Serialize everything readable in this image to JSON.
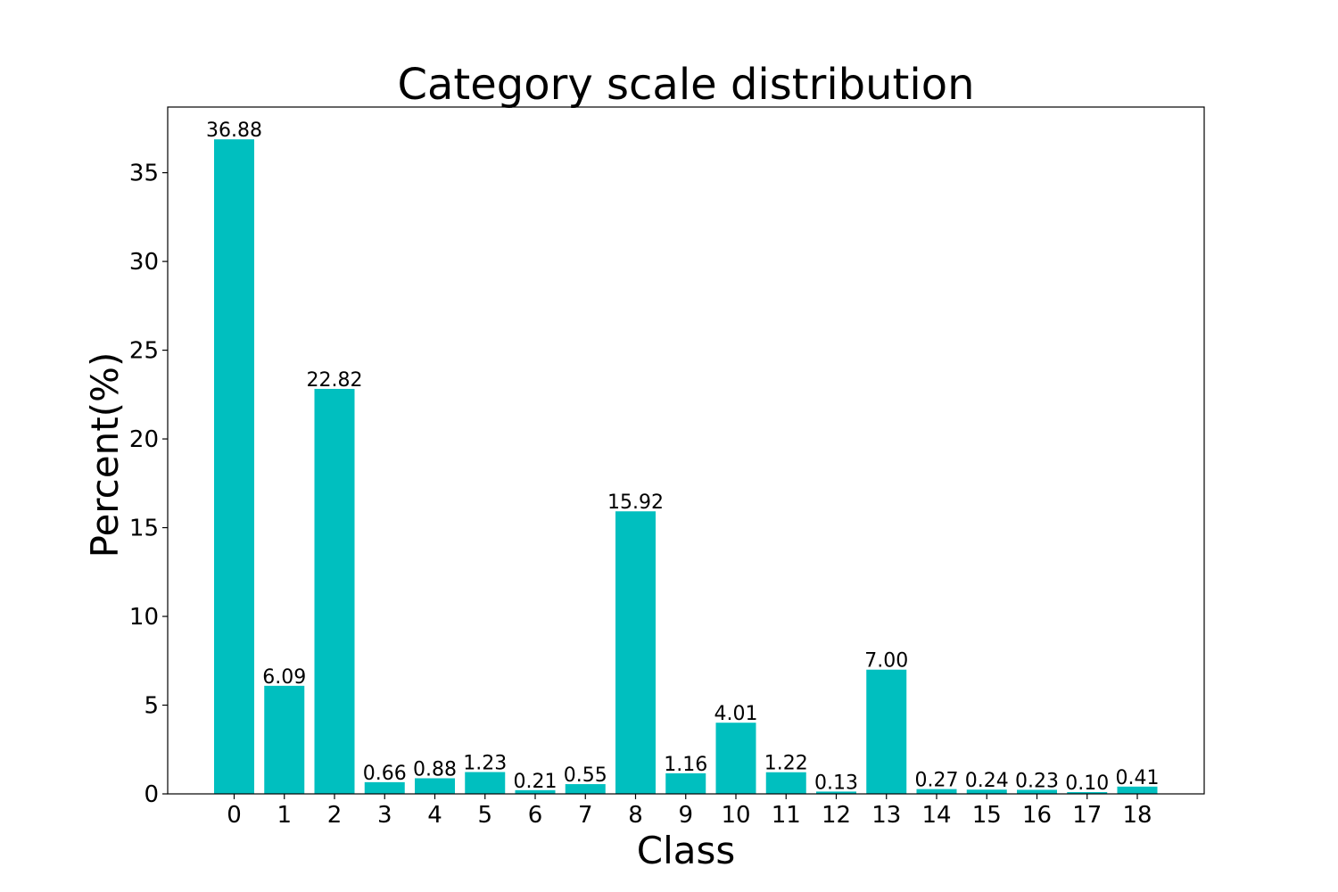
{
  "chart_data": {
    "type": "bar",
    "title": "Category scale distribution",
    "xlabel": "Class",
    "ylabel": "Percent(%)",
    "categories": [
      "0",
      "1",
      "2",
      "3",
      "4",
      "5",
      "6",
      "7",
      "8",
      "9",
      "10",
      "11",
      "12",
      "13",
      "14",
      "15",
      "16",
      "17",
      "18"
    ],
    "values": [
      36.88,
      6.09,
      22.82,
      0.66,
      0.88,
      1.23,
      0.21,
      0.55,
      15.92,
      1.16,
      4.01,
      1.22,
      0.13,
      7.0,
      0.27,
      0.24,
      0.23,
      0.1,
      0.41
    ],
    "value_labels": [
      "36.88",
      "6.09",
      "22.82",
      "0.66",
      "0.88",
      "1.23",
      "0.21",
      "0.55",
      "15.92",
      "1.16",
      "4.01",
      "1.22",
      "0.13",
      "7.00",
      "0.27",
      "0.24",
      "0.23",
      "0.10",
      "0.41"
    ],
    "ylim": [
      0,
      38.7
    ],
    "yticks": [
      0,
      5,
      10,
      15,
      20,
      25,
      30,
      35
    ],
    "bar_color": "#00bfbf",
    "grid": false,
    "legend": "none"
  }
}
